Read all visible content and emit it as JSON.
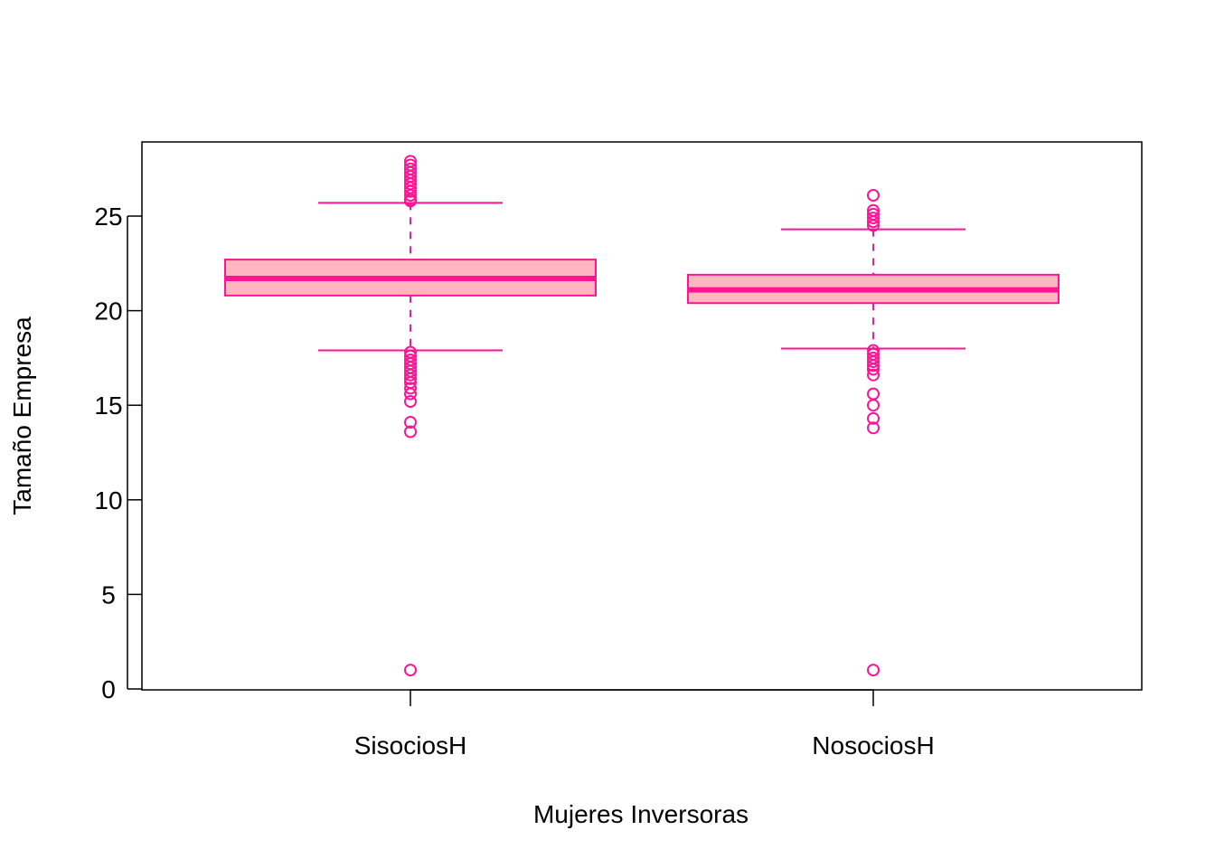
{
  "chart_data": {
    "type": "box",
    "title": "",
    "xlabel": "Mujeres Inversoras",
    "ylabel": "Tamaño Empresa",
    "ylim": [
      0,
      29
    ],
    "yticks": [
      0,
      5,
      10,
      15,
      20,
      25
    ],
    "categories": [
      "SisociosH",
      "NosociosH"
    ],
    "grid": false,
    "legend": "none",
    "colors": {
      "stroke": "#FF1493",
      "fill": "#FFB6C1",
      "axis": "#000000"
    },
    "boxes": [
      {
        "name": "SisociosH",
        "whisker_low": 17.9,
        "q1": 20.8,
        "median": 21.7,
        "q3": 22.7,
        "whisker_high": 25.7,
        "outliers": [
          27.9,
          27.7,
          27.5,
          27.3,
          27.1,
          26.9,
          26.7,
          26.5,
          26.3,
          26.1,
          25.9,
          25.8,
          17.8,
          17.6,
          17.4,
          17.2,
          17.0,
          16.8,
          16.6,
          16.4,
          16.2,
          15.9,
          15.6,
          15.2,
          14.1,
          13.6,
          1.0
        ]
      },
      {
        "name": "NosociosH",
        "whisker_low": 18.0,
        "q1": 20.4,
        "median": 21.1,
        "q3": 21.9,
        "whisker_high": 24.3,
        "outliers": [
          26.1,
          25.3,
          25.1,
          24.9,
          24.7,
          24.5,
          17.9,
          17.7,
          17.5,
          17.3,
          17.1,
          16.9,
          16.6,
          15.6,
          15.0,
          14.3,
          13.8,
          1.0
        ]
      }
    ]
  }
}
